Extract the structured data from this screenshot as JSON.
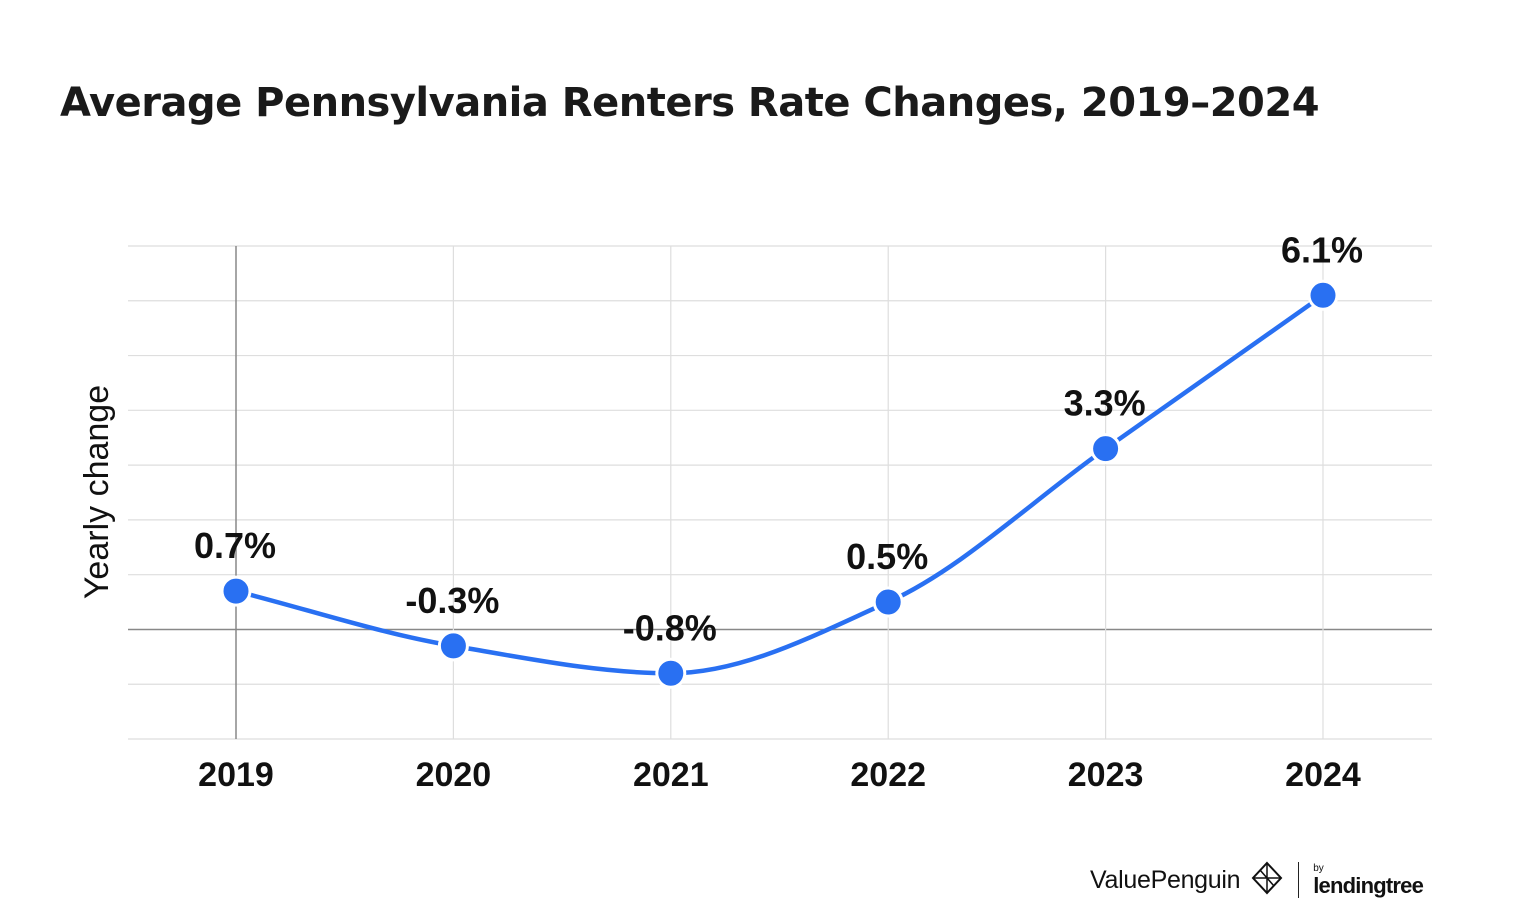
{
  "chart_data": {
    "type": "line",
    "title": "Average Pennsylvania Renters Rate Changes, 2019–2024",
    "ylabel": "Yearly change",
    "xlabel": "",
    "categories": [
      "2019",
      "2020",
      "2021",
      "2022",
      "2023",
      "2024"
    ],
    "series": [
      {
        "values": [
          0.7,
          -0.3,
          -0.8,
          0.5,
          3.3,
          6.1
        ],
        "labels": [
          "0.7%",
          "-0.3%",
          "-0.8%",
          "0.5%",
          "3.3%",
          "6.1%"
        ]
      }
    ],
    "ylim": [
      -2,
      7
    ],
    "grid": true,
    "line_color": "#2970f2"
  },
  "branding": {
    "name": "ValuePenguin",
    "by": "by",
    "partner": "lendingtree"
  }
}
